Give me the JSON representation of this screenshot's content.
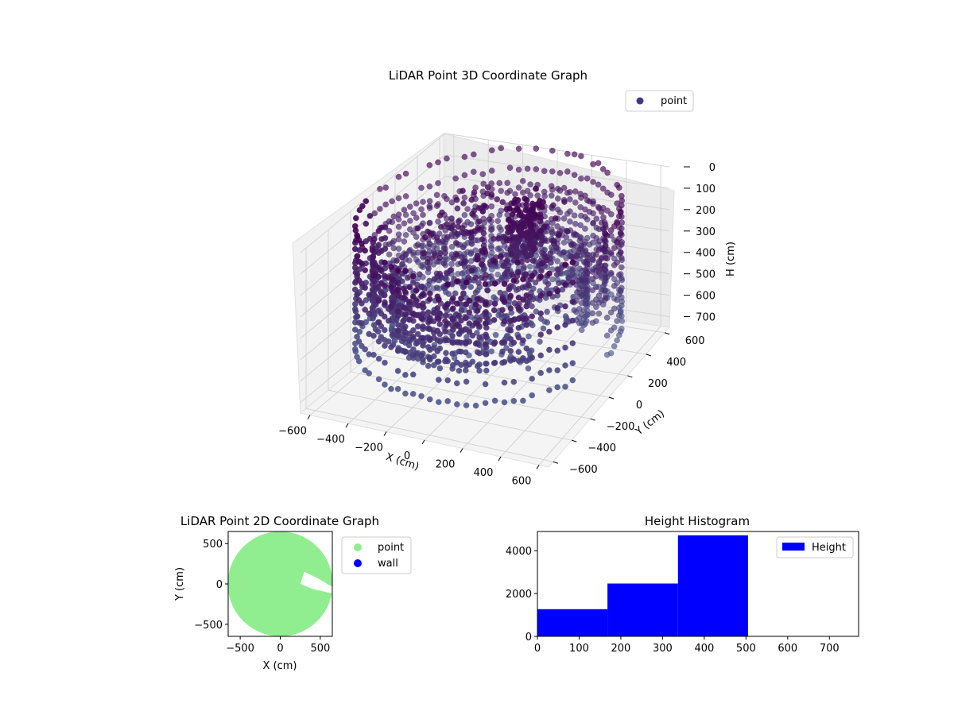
{
  "chart_data": [
    {
      "id": "lidar-3d",
      "type": "scatter",
      "projection": "3d",
      "title": "LiDAR Point 3D Coordinate Graph",
      "xlabel": "X (cm)",
      "ylabel": "Y (cm)",
      "zlabel": "H (cm)",
      "xlim": [
        -650,
        650
      ],
      "ylim": [
        -650,
        650
      ],
      "zlim": [
        0,
        750
      ],
      "z_inverted": true,
      "xticks": [
        -600,
        -400,
        -200,
        0,
        200,
        400,
        600
      ],
      "yticks": [
        -600,
        -400,
        -200,
        0,
        200,
        400,
        600
      ],
      "zticks": [
        0,
        100,
        200,
        300,
        400,
        500,
        600,
        700
      ],
      "grid": true,
      "legend": {
        "position": "top-right",
        "entries": [
          {
            "label": "point",
            "color": "#3e3a87"
          }
        ]
      },
      "color_range": [
        "#440154",
        "#4e6a98"
      ],
      "rings": [
        {
          "r": 640,
          "x_extent": [
            -600,
            620
          ],
          "h_range": [
            0,
            560
          ],
          "gap_from_deg": 340,
          "gap_to_deg": 360
        },
        {
          "r": 560,
          "x_extent": [
            -500,
            560
          ],
          "h_range": [
            120,
            420
          ],
          "gap_from_deg": 320,
          "gap_to_deg": 360
        },
        {
          "r": 470,
          "x_extent": [
            -420,
            470
          ],
          "h_range": [
            250,
            500
          ],
          "gap_from_deg": 300,
          "gap_to_deg": 360
        }
      ],
      "center_cluster": {
        "x_range": [
          -350,
          350
        ],
        "y_range": [
          -300,
          350
        ],
        "h_range": [
          0,
          560
        ]
      },
      "peak": {
        "x": 100,
        "y": 150,
        "h_range": [
          0,
          250
        ]
      }
    },
    {
      "id": "lidar-2d",
      "type": "scatter",
      "title": "LiDAR Point 2D Coordinate Graph",
      "xlabel": "X (cm)",
      "ylabel": "Y (cm)",
      "xlim": [
        -650,
        650
      ],
      "ylim": [
        -650,
        650
      ],
      "xticks": [
        -500,
        0,
        500
      ],
      "yticks": [
        -500,
        0,
        500
      ],
      "legend": {
        "position": "outside-right",
        "entries": [
          {
            "label": "point",
            "color": "#90ee90"
          },
          {
            "label": "wall",
            "color": "#0000ff"
          }
        ]
      },
      "disc_radius": 655,
      "notch_points": [
        [
          655,
          -40
        ],
        [
          450,
          80
        ],
        [
          300,
          150
        ],
        [
          250,
          0
        ],
        [
          400,
          -60
        ],
        [
          655,
          -120
        ]
      ]
    },
    {
      "id": "height-hist",
      "type": "bar",
      "title": "Height Histogram",
      "xlim": [
        0,
        770
      ],
      "ylim": [
        0,
        4900
      ],
      "xticks": [
        0,
        100,
        200,
        300,
        400,
        500,
        600,
        700
      ],
      "yticks": [
        0,
        2000,
        4000
      ],
      "bins": [
        {
          "from": 0,
          "to": 168,
          "count": 1270
        },
        {
          "from": 168,
          "to": 337,
          "count": 2470
        },
        {
          "from": 337,
          "to": 505,
          "count": 4720
        }
      ],
      "bar_color": "#0000ff",
      "legend": {
        "position": "top-right",
        "entries": [
          {
            "label": "Height",
            "color": "#0000ff"
          }
        ]
      }
    }
  ]
}
